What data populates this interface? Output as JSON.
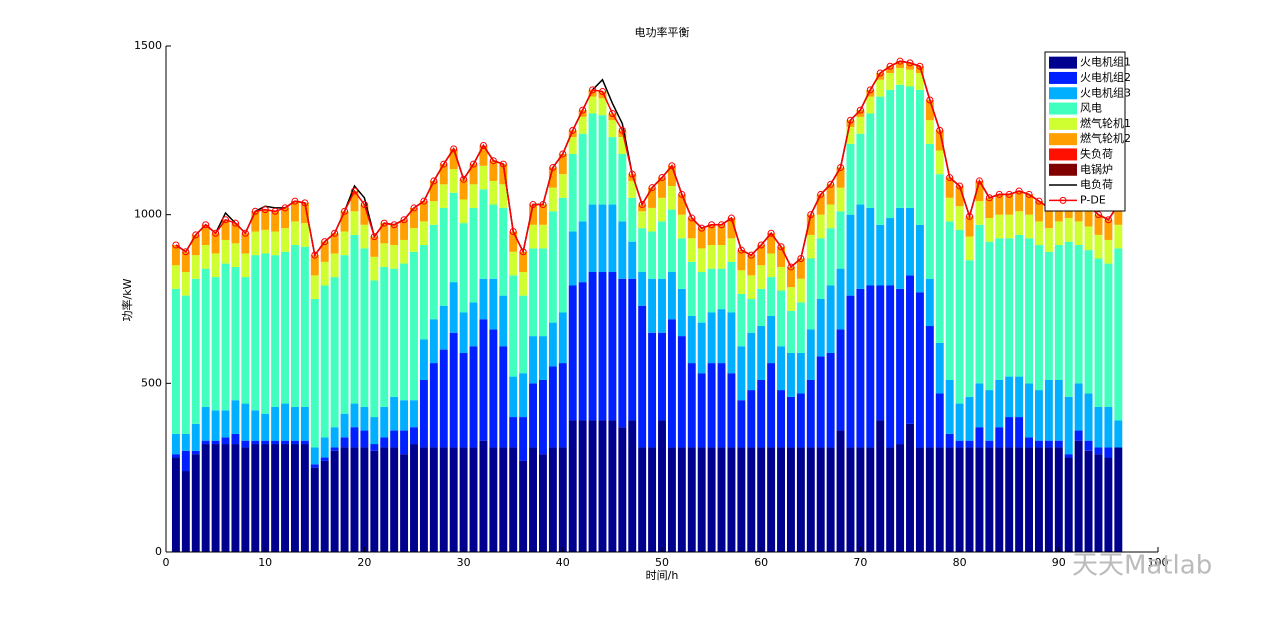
{
  "chart_data": {
    "type": "bar",
    "stacked": true,
    "title": "电功率平衡",
    "xlabel": "时间/h",
    "ylabel": "功率/kW",
    "watermark": "天天Matlab",
    "x": [
      1,
      2,
      3,
      4,
      5,
      6,
      7,
      8,
      9,
      10,
      11,
      12,
      13,
      14,
      15,
      16,
      17,
      18,
      19,
      20,
      21,
      22,
      23,
      24,
      25,
      26,
      27,
      28,
      29,
      30,
      31,
      32,
      33,
      34,
      35,
      36,
      37,
      38,
      39,
      40,
      41,
      42,
      43,
      44,
      45,
      46,
      47,
      48,
      49,
      50,
      51,
      52,
      53,
      54,
      55,
      56,
      57,
      58,
      59,
      60,
      61,
      62,
      63,
      64,
      65,
      66,
      67,
      68,
      69,
      70,
      71,
      72,
      73,
      74,
      75,
      76,
      77,
      78,
      79,
      80,
      81,
      82,
      83,
      84,
      85,
      86,
      87,
      88,
      89,
      90,
      91,
      92,
      93,
      94,
      95,
      96
    ],
    "xlim": [
      0,
      100
    ],
    "xticks": [
      0,
      10,
      20,
      30,
      40,
      50,
      60,
      70,
      80,
      90,
      100
    ],
    "ylim": [
      0,
      1500
    ],
    "yticks": [
      0,
      500,
      1000,
      1500
    ],
    "legend": "upper right",
    "series": [
      {
        "name": "火电机组1",
        "type": "bar",
        "color": "#00008f",
        "values": [
          280,
          240,
          290,
          320,
          320,
          320,
          320,
          310,
          320,
          320,
          320,
          320,
          320,
          320,
          250,
          270,
          300,
          310,
          310,
          310,
          300,
          310,
          310,
          290,
          320,
          310,
          310,
          310,
          310,
          310,
          310,
          330,
          310,
          310,
          310,
          270,
          310,
          290,
          310,
          310,
          390,
          390,
          390,
          390,
          390,
          370,
          390,
          310,
          310,
          390,
          310,
          310,
          310,
          310,
          310,
          310,
          310,
          310,
          310,
          310,
          310,
          310,
          310,
          310,
          310,
          310,
          310,
          360,
          310,
          310,
          310,
          390,
          310,
          320,
          380,
          310,
          310,
          310,
          310,
          310,
          310,
          310,
          310,
          310,
          310,
          310,
          310,
          310,
          310,
          310,
          280,
          330,
          300,
          290,
          280,
          310
        ]
      },
      {
        "name": "火电机组2",
        "type": "bar",
        "color": "#0020ff",
        "values": [
          10,
          60,
          10,
          10,
          10,
          20,
          30,
          20,
          10,
          10,
          10,
          10,
          10,
          10,
          10,
          10,
          10,
          30,
          60,
          50,
          20,
          30,
          50,
          70,
          50,
          200,
          250,
          290,
          340,
          280,
          300,
          360,
          350,
          300,
          90,
          130,
          190,
          220,
          240,
          250,
          400,
          410,
          440,
          440,
          440,
          440,
          420,
          420,
          340,
          260,
          380,
          330,
          250,
          220,
          250,
          250,
          220,
          140,
          170,
          200,
          250,
          170,
          150,
          160,
          200,
          270,
          280,
          300,
          450,
          470,
          480,
          400,
          480,
          460,
          440,
          460,
          360,
          160,
          40,
          20,
          20,
          60,
          20,
          60,
          90,
          90,
          30,
          20,
          20,
          20,
          10,
          30,
          30,
          20,
          30,
          0
        ]
      },
      {
        "name": "火电机组3",
        "type": "bar",
        "color": "#00afff",
        "values": [
          60,
          50,
          80,
          100,
          90,
          80,
          100,
          110,
          90,
          80,
          100,
          110,
          100,
          100,
          50,
          60,
          60,
          70,
          70,
          70,
          80,
          90,
          100,
          90,
          80,
          120,
          130,
          130,
          150,
          120,
          130,
          120,
          150,
          150,
          120,
          130,
          140,
          130,
          130,
          150,
          160,
          180,
          200,
          200,
          200,
          170,
          110,
          100,
          160,
          160,
          140,
          140,
          140,
          150,
          150,
          160,
          180,
          160,
          170,
          160,
          140,
          130,
          130,
          120,
          150,
          170,
          200,
          180,
          240,
          250,
          230,
          180,
          200,
          240,
          200,
          200,
          140,
          150,
          160,
          110,
          130,
          130,
          150,
          140,
          120,
          120,
          160,
          150,
          180,
          180,
          170,
          140,
          140,
          120,
          120,
          80
        ]
      },
      {
        "name": "风电",
        "type": "bar",
        "color": "#40ffbf",
        "values": [
          430,
          410,
          430,
          410,
          395,
          435,
          395,
          375,
          460,
          475,
          450,
          450,
          480,
          475,
          440,
          450,
          445,
          470,
          500,
          470,
          405,
          415,
          380,
          405,
          440,
          280,
          280,
          290,
          265,
          265,
          280,
          265,
          220,
          260,
          300,
          230,
          260,
          260,
          330,
          340,
          230,
          260,
          270,
          265,
          200,
          200,
          130,
          130,
          140,
          170,
          185,
          150,
          160,
          150,
          130,
          120,
          150,
          155,
          100,
          110,
          115,
          165,
          125,
          150,
          210,
          180,
          170,
          170,
          210,
          210,
          280,
          380,
          380,
          365,
          360,
          400,
          400,
          500,
          470,
          515,
          405,
          470,
          440,
          420,
          410,
          420,
          430,
          430,
          380,
          400,
          460,
          410,
          425,
          440,
          425,
          510
        ]
      },
      {
        "name": "燃气轮机1",
        "type": "bar",
        "color": "#cfff30",
        "values": [
          70,
          70,
          70,
          70,
          70,
          70,
          70,
          70,
          70,
          70,
          70,
          70,
          70,
          70,
          70,
          70,
          70,
          70,
          70,
          70,
          70,
          70,
          70,
          70,
          70,
          70,
          70,
          70,
          70,
          70,
          70,
          70,
          70,
          70,
          70,
          70,
          70,
          70,
          70,
          70,
          50,
          50,
          50,
          50,
          50,
          50,
          50,
          50,
          70,
          70,
          70,
          70,
          70,
          70,
          70,
          70,
          70,
          70,
          70,
          70,
          70,
          70,
          70,
          70,
          70,
          70,
          70,
          70,
          50,
          50,
          50,
          50,
          50,
          50,
          50,
          50,
          70,
          70,
          70,
          70,
          70,
          70,
          70,
          70,
          70,
          70,
          70,
          70,
          70,
          70,
          70,
          70,
          70,
          70,
          70,
          70
        ]
      },
      {
        "name": "燃气轮机2",
        "type": "bar",
        "color": "#ffa000",
        "values": [
          60,
          60,
          60,
          60,
          60,
          60,
          60,
          60,
          60,
          60,
          60,
          60,
          60,
          60,
          60,
          60,
          60,
          60,
          60,
          60,
          60,
          60,
          60,
          60,
          60,
          60,
          60,
          60,
          60,
          60,
          60,
          60,
          60,
          60,
          60,
          60,
          60,
          60,
          60,
          60,
          20,
          20,
          20,
          20,
          20,
          20,
          20,
          20,
          60,
          60,
          60,
          60,
          60,
          60,
          60,
          60,
          60,
          60,
          60,
          60,
          60,
          60,
          60,
          60,
          60,
          60,
          60,
          60,
          20,
          20,
          20,
          20,
          20,
          20,
          20,
          20,
          60,
          60,
          60,
          60,
          60,
          60,
          60,
          60,
          60,
          60,
          60,
          60,
          60,
          60,
          60,
          60,
          60,
          60,
          60,
          60
        ]
      },
      {
        "name": "失负荷",
        "type": "bar",
        "color": "#ff1000",
        "values": [
          0,
          0,
          0,
          0,
          0,
          0,
          0,
          0,
          0,
          0,
          0,
          0,
          0,
          0,
          0,
          0,
          0,
          0,
          0,
          0,
          0,
          0,
          0,
          0,
          0,
          0,
          0,
          0,
          0,
          0,
          0,
          0,
          0,
          0,
          0,
          0,
          0,
          0,
          0,
          0,
          0,
          0,
          0,
          0,
          0,
          0,
          0,
          0,
          0,
          0,
          0,
          0,
          0,
          0,
          0,
          0,
          0,
          0,
          0,
          0,
          0,
          0,
          0,
          0,
          0,
          0,
          0,
          0,
          0,
          0,
          0,
          0,
          0,
          0,
          0,
          0,
          0,
          0,
          0,
          0,
          0,
          0,
          0,
          0,
          0,
          0,
          0,
          0,
          0,
          0,
          0,
          0,
          0,
          0,
          0,
          0
        ]
      },
      {
        "name": "电锅炉",
        "type": "bar",
        "color": "#800000",
        "values": [
          0,
          0,
          0,
          0,
          0,
          0,
          0,
          0,
          0,
          0,
          0,
          0,
          0,
          0,
          0,
          0,
          0,
          0,
          0,
          0,
          0,
          0,
          0,
          0,
          0,
          0,
          0,
          0,
          0,
          0,
          0,
          0,
          0,
          0,
          0,
          0,
          0,
          0,
          0,
          0,
          0,
          0,
          0,
          0,
          0,
          0,
          0,
          0,
          0,
          0,
          0,
          0,
          0,
          0,
          0,
          0,
          0,
          0,
          0,
          0,
          0,
          0,
          0,
          0,
          0,
          0,
          0,
          0,
          0,
          0,
          0,
          0,
          0,
          0,
          0,
          0,
          0,
          0,
          0,
          0,
          0,
          0,
          0,
          0,
          0,
          0,
          0,
          0,
          0,
          0,
          0,
          0,
          0,
          0,
          0,
          0
        ]
      },
      {
        "name": "电负荷",
        "type": "line",
        "color": "#000000",
        "values": [
          910,
          890,
          940,
          970,
          945,
          1005,
          975,
          945,
          1010,
          1025,
          1020,
          1020,
          1040,
          1035,
          880,
          920,
          945,
          1010,
          1085,
          1050,
          935,
          975,
          970,
          985,
          1020,
          1040,
          1100,
          1150,
          1195,
          1105,
          1150,
          1205,
          1160,
          1150,
          950,
          890,
          1030,
          1030,
          1140,
          1180,
          1250,
          1310,
          1370,
          1400,
          1330,
          1270,
          1120,
          1030,
          1080,
          1110,
          1145,
          1060,
          990,
          960,
          970,
          970,
          990,
          895,
          880,
          910,
          945,
          905,
          845,
          870,
          1000,
          1060,
          1090,
          1140,
          1280,
          1310,
          1370,
          1420,
          1440,
          1455,
          1450,
          1440,
          1340,
          1250,
          1110,
          1085,
          995,
          1100,
          1050,
          1060,
          1060,
          1070,
          1060,
          1040,
          1020,
          1040,
          1050,
          1040,
          1025,
          1000,
          985,
          1030
        ]
      },
      {
        "name": "P-DE",
        "type": "line",
        "marker": "circle",
        "color": "#ff0000",
        "values": [
          910,
          890,
          940,
          970,
          945,
          985,
          975,
          945,
          1010,
          1015,
          1010,
          1020,
          1040,
          1035,
          880,
          920,
          945,
          1010,
          1070,
          1030,
          935,
          975,
          970,
          985,
          1020,
          1040,
          1100,
          1150,
          1195,
          1105,
          1150,
          1205,
          1160,
          1150,
          950,
          890,
          1030,
          1030,
          1140,
          1180,
          1250,
          1310,
          1370,
          1365,
          1300,
          1250,
          1120,
          1030,
          1080,
          1110,
          1145,
          1060,
          990,
          960,
          970,
          970,
          990,
          895,
          880,
          910,
          945,
          905,
          845,
          870,
          1000,
          1060,
          1090,
          1140,
          1280,
          1310,
          1370,
          1420,
          1440,
          1455,
          1450,
          1440,
          1340,
          1250,
          1110,
          1085,
          995,
          1100,
          1050,
          1060,
          1060,
          1070,
          1060,
          1040,
          1020,
          1040,
          1050,
          1040,
          1025,
          1000,
          985,
          1030
        ]
      }
    ]
  }
}
